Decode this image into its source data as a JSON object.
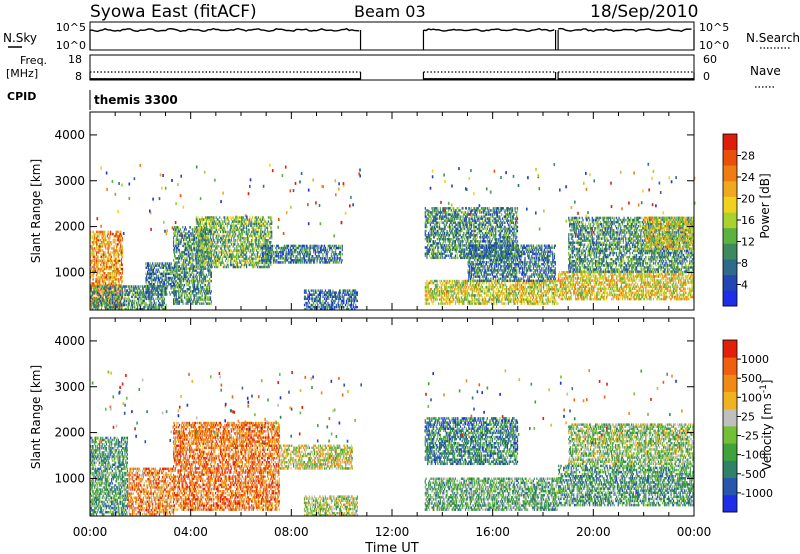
{
  "header": {
    "station": "Syowa East (fitACF)",
    "beam": "Beam 03",
    "date": "18/Sep/2010"
  },
  "noise_panel": {
    "left_label": "N.Sky",
    "right_label": "N.Search",
    "left_ticks": [
      "10^5",
      "10^0"
    ],
    "right_ticks": [
      "10^5",
      "10^0"
    ]
  },
  "freq_panel": {
    "left_label_1": "Freq.",
    "left_label_2": "[MHz]",
    "right_label": "Nave",
    "left_ticks": [
      "18",
      "8"
    ],
    "right_ticks": [
      "60",
      "0"
    ]
  },
  "cpid_panel": {
    "label": "CPID",
    "program": "themis 3300"
  },
  "x_axis": {
    "title": "Time UT",
    "ticks": [
      "00:00",
      "04:00",
      "08:00",
      "12:00",
      "16:00",
      "20:00",
      "00:00"
    ]
  },
  "chart_data": [
    {
      "type": "heatmap",
      "title": "Power",
      "ylabel": "Slant Range [km]",
      "ylim": [
        180,
        4500
      ],
      "yticks": [
        1000,
        2000,
        3000,
        4000
      ],
      "xlim_hours": [
        0,
        24
      ],
      "colorbar": {
        "label": "Power [dB]",
        "ticks": [
          "4",
          "8",
          "12",
          "16",
          "20",
          "24",
          "28"
        ],
        "colors": [
          "#1e2ee6",
          "#2247b5",
          "#2f6a8a",
          "#3e8a5e",
          "#5cb23e",
          "#a8d22e",
          "#f0d21e",
          "#f0a81e",
          "#f07d12",
          "#e8500c",
          "#dd1e0a"
        ]
      },
      "data_gap_hours": [
        10.75,
        13.25
      ],
      "echo_regions": [
        {
          "t0": 0.0,
          "t1": 1.3,
          "r0": 200,
          "r1": 1900,
          "level": 0.72
        },
        {
          "t0": 0.0,
          "t1": 3.0,
          "r0": 180,
          "r1": 700,
          "level": 0.3
        },
        {
          "t0": 2.2,
          "t1": 3.4,
          "r0": 500,
          "r1": 1200,
          "level": 0.25
        },
        {
          "t0": 3.3,
          "t1": 4.8,
          "r0": 300,
          "r1": 2000,
          "level": 0.32
        },
        {
          "t0": 4.2,
          "t1": 7.2,
          "r0": 1100,
          "r1": 2200,
          "level": 0.4
        },
        {
          "t0": 6.8,
          "t1": 10.0,
          "r0": 1200,
          "r1": 1600,
          "level": 0.25
        },
        {
          "t0": 8.5,
          "t1": 10.6,
          "r0": 180,
          "r1": 600,
          "level": 0.2
        },
        {
          "t0": 13.3,
          "t1": 17.0,
          "r0": 1300,
          "r1": 2400,
          "level": 0.3
        },
        {
          "t0": 13.3,
          "t1": 18.6,
          "r0": 300,
          "r1": 800,
          "level": 0.55
        },
        {
          "t0": 15.0,
          "t1": 18.5,
          "r0": 800,
          "r1": 1600,
          "level": 0.25
        },
        {
          "t0": 18.6,
          "t1": 24.0,
          "r0": 400,
          "r1": 1000,
          "level": 0.6
        },
        {
          "t0": 19.0,
          "t1": 24.0,
          "r0": 1000,
          "r1": 2200,
          "level": 0.32
        },
        {
          "t0": 22.0,
          "t1": 24.0,
          "r0": 1500,
          "r1": 2200,
          "level": 0.55
        }
      ]
    },
    {
      "type": "heatmap",
      "title": "Velocity",
      "ylabel": "Slant Range [km]",
      "ylim": [
        180,
        4500
      ],
      "yticks": [
        1000,
        2000,
        3000,
        4000
      ],
      "xlim_hours": [
        0,
        24
      ],
      "colorbar": {
        "label": "Velocity [m s^-1]",
        "ticks": [
          "1000",
          "500",
          "100",
          "25",
          "-25",
          "-100",
          "-500",
          "-1000"
        ],
        "colors": [
          "#1e2ee6",
          "#2757ad",
          "#2f8268",
          "#3fa23a",
          "#72c035",
          "#bfbfbf",
          "#f0b21e",
          "#f08a14",
          "#ee5f10",
          "#e2200a"
        ]
      },
      "data_gap_hours": [
        10.75,
        13.25
      ],
      "echo_regions": [
        {
          "t0": 0.0,
          "t1": 1.5,
          "r0": 200,
          "r1": 1900,
          "level": 0.35
        },
        {
          "t0": 1.5,
          "t1": 3.3,
          "r0": 200,
          "r1": 1200,
          "level": 0.75
        },
        {
          "t0": 3.3,
          "t1": 7.5,
          "r0": 300,
          "r1": 2200,
          "level": 0.8
        },
        {
          "t0": 7.5,
          "t1": 10.4,
          "r0": 1200,
          "r1": 1700,
          "level": 0.55
        },
        {
          "t0": 8.5,
          "t1": 10.6,
          "r0": 180,
          "r1": 600,
          "level": 0.5
        },
        {
          "t0": 13.3,
          "t1": 17.0,
          "r0": 1300,
          "r1": 2300,
          "level": 0.25
        },
        {
          "t0": 13.3,
          "t1": 18.6,
          "r0": 300,
          "r1": 1000,
          "level": 0.38
        },
        {
          "t0": 18.6,
          "t1": 24.0,
          "r0": 400,
          "r1": 1300,
          "level": 0.32
        },
        {
          "t0": 19.0,
          "t1": 24.0,
          "r0": 1300,
          "r1": 2200,
          "level": 0.45
        }
      ]
    }
  ]
}
